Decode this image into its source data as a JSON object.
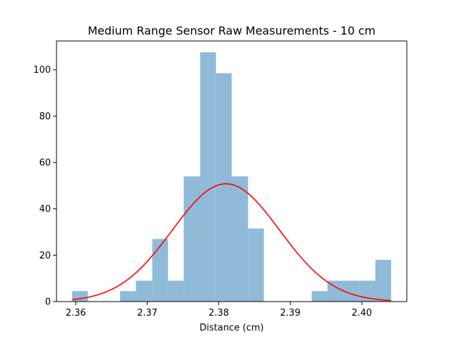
{
  "chart_data": {
    "type": "bar",
    "title": "Medium Range Sensor Raw Measurements - 10 cm",
    "xlabel": "Distance (cm)",
    "ylabel": "",
    "xlim": [
      2.3573,
      2.4063
    ],
    "ylim": [
      0,
      112.4
    ],
    "x_ticks": [
      {
        "value": 2.36,
        "label": "2.36"
      },
      {
        "value": 2.37,
        "label": "2.37"
      },
      {
        "value": 2.38,
        "label": "2.38"
      },
      {
        "value": 2.39,
        "label": "2.39"
      },
      {
        "value": 2.4,
        "label": "2.40"
      }
    ],
    "y_ticks": [
      {
        "value": 0,
        "label": "0"
      },
      {
        "value": 20,
        "label": "20"
      },
      {
        "value": 40,
        "label": "40"
      },
      {
        "value": 60,
        "label": "60"
      },
      {
        "value": 80,
        "label": "80"
      },
      {
        "value": 100,
        "label": "100"
      }
    ],
    "bins": [
      {
        "x0": 2.3595,
        "x1": 2.3617,
        "value": 4.5
      },
      {
        "x0": 2.3617,
        "x1": 2.364,
        "value": 0
      },
      {
        "x0": 2.364,
        "x1": 2.3662,
        "value": 0
      },
      {
        "x0": 2.3662,
        "x1": 2.3684,
        "value": 4.5
      },
      {
        "x0": 2.3684,
        "x1": 2.3707,
        "value": 9
      },
      {
        "x0": 2.3707,
        "x1": 2.3729,
        "value": 27
      },
      {
        "x0": 2.3729,
        "x1": 2.3751,
        "value": 9
      },
      {
        "x0": 2.3751,
        "x1": 2.3774,
        "value": 54
      },
      {
        "x0": 2.3774,
        "x1": 2.3796,
        "value": 107.5
      },
      {
        "x0": 2.3796,
        "x1": 2.3818,
        "value": 98.5
      },
      {
        "x0": 2.3818,
        "x1": 2.3841,
        "value": 54
      },
      {
        "x0": 2.3841,
        "x1": 2.3863,
        "value": 31.5
      },
      {
        "x0": 2.3863,
        "x1": 2.3885,
        "value": 0
      },
      {
        "x0": 2.3885,
        "x1": 2.3908,
        "value": 0
      },
      {
        "x0": 2.3908,
        "x1": 2.393,
        "value": 0
      },
      {
        "x0": 2.393,
        "x1": 2.3952,
        "value": 4.5
      },
      {
        "x0": 2.3952,
        "x1": 2.3975,
        "value": 9
      },
      {
        "x0": 2.3975,
        "x1": 2.3997,
        "value": 9
      },
      {
        "x0": 2.3997,
        "x1": 2.4019,
        "value": 9
      },
      {
        "x0": 2.4019,
        "x1": 2.4041,
        "value": 18
      }
    ],
    "fit_curve": {
      "type": "normal",
      "mean": 2.381,
      "std": 0.0075,
      "peak": 50.8,
      "x_range": [
        2.3595,
        2.4041
      ]
    },
    "bar_color": "#8fbad8",
    "curve_color": "#ff0000",
    "grid": false
  }
}
